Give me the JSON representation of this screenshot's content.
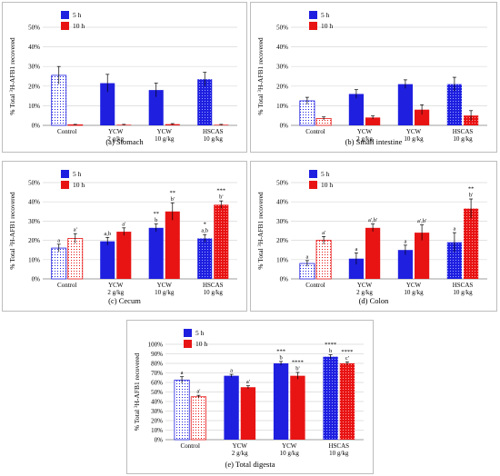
{
  "figure": {
    "colors": {
      "h5": "#1f1fe0",
      "h10": "#e81414",
      "grid": "#d9d9d9",
      "axis": "#7f7f7f",
      "control_fill": "#ffffff"
    },
    "legend": {
      "h5": "5 h",
      "h10": "10 h"
    },
    "ylabel_parts": [
      "% Total ",
      "3",
      "H-AFB1 recovered"
    ],
    "x_groups": [
      {
        "line1": "Control",
        "line2": ""
      },
      {
        "line1": "YCW",
        "line2": "2 g/kg"
      },
      {
        "line1": "YCW",
        "line2": "10 g/kg"
      },
      {
        "line1": "HSCAS",
        "line2": "10 g/kg"
      }
    ]
  },
  "chart_data": [
    {
      "type": "bar",
      "caption": "(a) Stomach",
      "categories": [
        "Control",
        "YCW 2 g/kg",
        "YCW 10 g/kg",
        "HSCAS 10 g/kg"
      ],
      "ylim": [
        0,
        50
      ],
      "yticks": [
        "0%",
        "10%",
        "20%",
        "30%",
        "40%",
        "50%"
      ],
      "series": [
        {
          "name": "5 h",
          "values": [
            25.5,
            21.5,
            18,
            23.5
          ],
          "errors": [
            4.5,
            4.5,
            3.5,
            3.5
          ],
          "labels": [
            "",
            "",
            "",
            ""
          ]
        },
        {
          "name": "10 h",
          "values": [
            0.3,
            0.3,
            0.6,
            0.3
          ],
          "errors": [
            0.2,
            0.2,
            0.3,
            0.2
          ],
          "labels": [
            "",
            "",
            "",
            ""
          ]
        }
      ]
    },
    {
      "type": "bar",
      "caption": "(b) Small intestine",
      "categories": [
        "Control",
        "YCW 2 g/kg",
        "YCW 10 g/kg",
        "HSCAS 10 g/kg"
      ],
      "ylim": [
        0,
        50
      ],
      "yticks": [
        "0%",
        "10%",
        "20%",
        "30%",
        "40%",
        "50%"
      ],
      "series": [
        {
          "name": "5 h",
          "values": [
            12.5,
            16,
            21,
            21
          ],
          "errors": [
            1.8,
            2.2,
            2.2,
            3.5
          ],
          "labels": [
            "",
            "",
            "",
            ""
          ]
        },
        {
          "name": "10 h",
          "values": [
            3.5,
            4,
            8,
            5
          ],
          "errors": [
            0.8,
            0.8,
            2.5,
            2.5
          ],
          "labels": [
            "",
            "",
            "",
            ""
          ]
        }
      ]
    },
    {
      "type": "bar",
      "caption": "(c) Cecum",
      "categories": [
        "Control",
        "YCW 2 g/kg",
        "YCW 10 g/kg",
        "HSCAS 10 g/kg"
      ],
      "ylim": [
        0,
        50
      ],
      "yticks": [
        "0%",
        "10%",
        "20%",
        "30%",
        "40%",
        "50%"
      ],
      "series": [
        {
          "name": "5 h",
          "values": [
            16,
            19.5,
            26.5,
            21
          ],
          "errors": [
            2,
            2,
            2,
            2
          ],
          "labels": [
            "a",
            "a,b",
            "**|b",
            "*|a,b"
          ]
        },
        {
          "name": "10 h",
          "values": [
            21,
            24.5,
            35,
            38.5
          ],
          "errors": [
            2.5,
            2,
            4.5,
            2
          ],
          "labels": [
            "a'",
            "a'",
            "**|b'",
            "***|b'"
          ]
        }
      ]
    },
    {
      "type": "bar",
      "caption": "(d) Colon",
      "categories": [
        "Control",
        "YCW 2 g/kg",
        "YCW 10 g/kg",
        "HSCAS 10 g/kg"
      ],
      "ylim": [
        0,
        50
      ],
      "yticks": [
        "0%",
        "10%",
        "20%",
        "30%",
        "40%",
        "50%"
      ],
      "series": [
        {
          "name": "5 h",
          "values": [
            8,
            10.5,
            15,
            19
          ],
          "errors": [
            1.5,
            3,
            2.5,
            5
          ],
          "labels": [
            "a",
            "a",
            "a",
            "a"
          ]
        },
        {
          "name": "10 h",
          "values": [
            20,
            26.5,
            24,
            36.5
          ],
          "errors": [
            2,
            2,
            4,
            5
          ],
          "labels": [
            "a'",
            "a',b'",
            "a',b'",
            "**|b'"
          ]
        }
      ]
    },
    {
      "type": "bar",
      "caption": "(e) Total digesta",
      "categories": [
        "Control",
        "YCW 2 g/kg",
        "YCW 10 g/kg",
        "HSCAS 10 g/kg"
      ],
      "ylim": [
        0,
        100
      ],
      "yticks": [
        "0%",
        "10%",
        "20%",
        "30%",
        "40%",
        "50%",
        "60%",
        "70%",
        "80%",
        "90%",
        "100%"
      ],
      "series": [
        {
          "name": "5 h",
          "values": [
            62.5,
            67,
            80,
            87
          ],
          "errors": [
            3.5,
            1.5,
            2,
            2
          ],
          "labels": [
            "a",
            "a",
            "***|b",
            "****|b"
          ]
        },
        {
          "name": "10 h",
          "values": [
            45,
            55,
            67,
            80
          ],
          "errors": [
            1.5,
            1.5,
            3.5,
            1.5
          ],
          "labels": [
            "a'",
            "a'",
            "****|b'",
            "****|c'"
          ]
        }
      ]
    }
  ]
}
